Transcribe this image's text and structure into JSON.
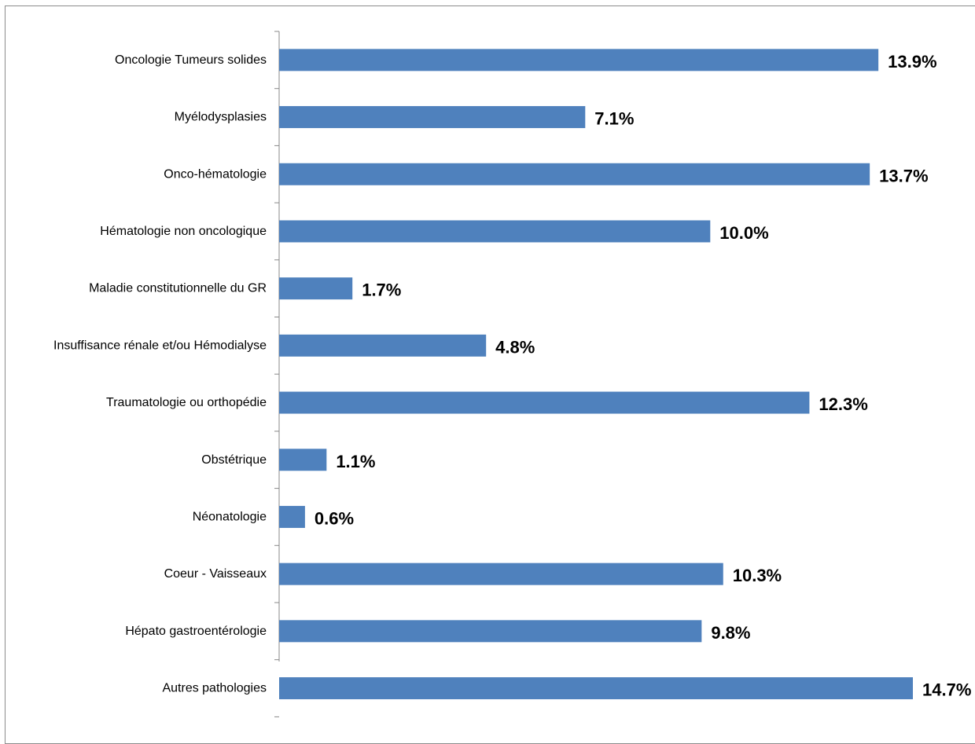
{
  "chart_data": {
    "type": "bar",
    "orientation": "horizontal",
    "categories": [
      "Oncologie Tumeurs solides",
      "Myélodysplasies",
      "Onco-hématologie",
      "Hématologie non oncologique",
      "Maladie constitutionnelle du GR",
      "Insuffisance rénale et/ou Hémodialyse",
      "Traumatologie ou orthopédie",
      "Obstétrique",
      "Néonatologie",
      "Coeur - Vaisseaux",
      "Hépato gastroentérologie",
      "Autres pathologies"
    ],
    "values": [
      13.9,
      7.1,
      13.7,
      10.0,
      1.7,
      4.8,
      12.3,
      1.1,
      0.6,
      10.3,
      9.8,
      14.7
    ],
    "value_labels": [
      "13.9%",
      "7.1%",
      "13.7%",
      "10.0%",
      "1.7%",
      "4.8%",
      "12.3%",
      "1.1%",
      "0.6%",
      "10.3%",
      "9.8%",
      "14.7%"
    ],
    "bar_color": "#4f81bd",
    "xlim": [
      0,
      14.7
    ],
    "grid": false,
    "legend": false
  }
}
